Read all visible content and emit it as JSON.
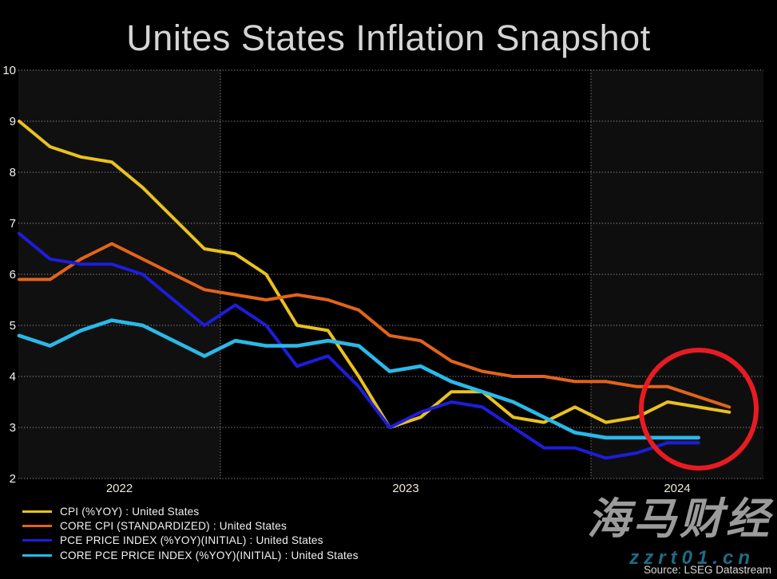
{
  "source_text": "Source: LSEG Datastream",
  "watermark": {
    "brand": "海马财经",
    "site": "zzrt01.cn"
  },
  "chart_data": {
    "type": "line",
    "title": "Unites States Inflation Snapshot",
    "xlabel": "",
    "ylabel": "",
    "ylim": [
      2,
      10
    ],
    "y_ticks": [
      10,
      9,
      8,
      7,
      6,
      5,
      4,
      3,
      2
    ],
    "x_tick_labels": [
      "2022",
      "2023",
      "2024"
    ],
    "grid": "dotted horizontal lines at each integer, dotted vertical lines at year boundaries",
    "legend_position": "bottom-left",
    "months": [
      "2022-06",
      "2022-07",
      "2022-08",
      "2022-09",
      "2022-10",
      "2022-11",
      "2022-12",
      "2023-01",
      "2023-02",
      "2023-03",
      "2023-04",
      "2023-05",
      "2023-06",
      "2023-07",
      "2023-08",
      "2023-09",
      "2023-10",
      "2023-11",
      "2023-12",
      "2024-01",
      "2024-02",
      "2024-03",
      "2024-04",
      "2024-05"
    ],
    "series": [
      {
        "name": "CPI (%YOY) : United States",
        "color": "#eac11f",
        "values": [
          9.0,
          8.5,
          8.3,
          8.2,
          7.7,
          7.1,
          6.5,
          6.4,
          6.0,
          5.0,
          4.9,
          4.0,
          3.0,
          3.2,
          3.7,
          3.7,
          3.2,
          3.1,
          3.4,
          3.1,
          3.2,
          3.5,
          3.4,
          3.3
        ]
      },
      {
        "name": "CORE CPI (STANDARDIZED) : United States",
        "color": "#e2641a",
        "values": [
          5.9,
          5.9,
          6.3,
          6.6,
          6.3,
          6.0,
          5.7,
          5.6,
          5.5,
          5.6,
          5.5,
          5.3,
          4.8,
          4.7,
          4.3,
          4.1,
          4.0,
          4.0,
          3.9,
          3.9,
          3.8,
          3.8,
          3.6,
          3.4
        ]
      },
      {
        "name": "PCE PRICE INDEX (%YOY)(INITIAL) : United States",
        "color": "#1d1ddd",
        "values": [
          6.8,
          6.3,
          6.2,
          6.2,
          6.0,
          5.5,
          5.0,
          5.4,
          5.0,
          4.2,
          4.4,
          3.8,
          3.0,
          3.3,
          3.5,
          3.4,
          3.0,
          2.6,
          2.6,
          2.4,
          2.5,
          2.7,
          2.7
        ]
      },
      {
        "name": "CORE PCE PRICE INDEX (%YOY)(INITIAL) : United States",
        "color": "#2ab9e9",
        "values": [
          4.8,
          4.6,
          4.9,
          5.1,
          5.0,
          4.7,
          4.4,
          4.7,
          4.6,
          4.6,
          4.7,
          4.6,
          4.1,
          4.2,
          3.9,
          3.7,
          3.5,
          3.2,
          2.9,
          2.8,
          2.8,
          2.8,
          2.8
        ]
      }
    ],
    "annotation": {
      "shape": "ellipse",
      "color": "#e81b23",
      "cx": 875,
      "cy": 513,
      "rx": 72,
      "ry": 74,
      "highlights": "latest 2024 readings circled in red"
    }
  }
}
